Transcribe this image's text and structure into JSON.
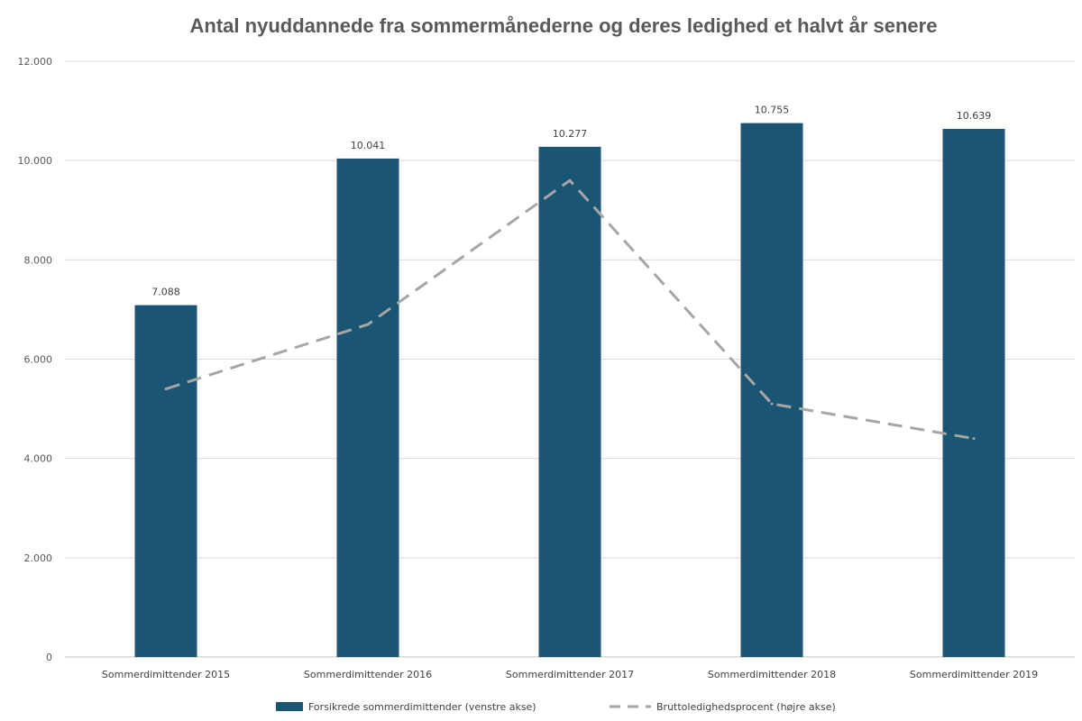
{
  "chart_data": {
    "type": "bar",
    "title": "Antal nyuddannede fra sommermånederne og deres ledighed et halvt år senere",
    "categories": [
      "Sommerdimittender 2015",
      "Sommerdimittender 2016",
      "Sommerdimittender 2017",
      "Sommerdimittender 2018",
      "Sommerdimittender 2019"
    ],
    "ylim": [
      0,
      12000
    ],
    "yticks": [
      0,
      2000,
      4000,
      6000,
      8000,
      10000,
      12000
    ],
    "ytick_labels": [
      "0",
      "2.000",
      "4.000",
      "6.000",
      "8.000",
      "10.000",
      "12.000"
    ],
    "grid": true,
    "legend_position": "bottom",
    "series": [
      {
        "name": "Forsikrede sommerdimittender (venstre akse)",
        "type": "bar",
        "axis": "left",
        "values": [
          7088,
          10041,
          10277,
          10755,
          10639
        ],
        "labels": [
          "7.088",
          "10.041",
          "10.277",
          "10.755",
          "10.639"
        ],
        "color": "#1a5573"
      },
      {
        "name": "Bruttoledighedsprocent (højre akse)",
        "type": "line",
        "style": "dashed",
        "axis": "right",
        "right_axis_shown": false,
        "values": [
          5400,
          6700,
          9600,
          5100,
          4400
        ],
        "color": "#a6a6a6"
      }
    ]
  }
}
